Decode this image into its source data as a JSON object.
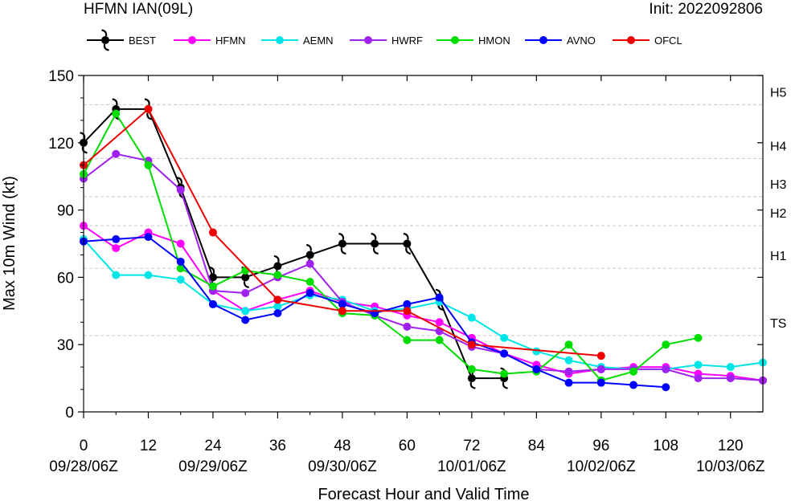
{
  "header": {
    "left_title": "HFMN IAN(09L)",
    "right_title": "Init: 2022092806"
  },
  "chart_data": {
    "type": "line",
    "xlabel": "Forecast Hour and Valid Time",
    "ylabel": "Max 10m Wind (kt)",
    "xlim": [
      0,
      126
    ],
    "ylim": [
      0,
      150
    ],
    "x_ticks": [
      0,
      12,
      24,
      36,
      48,
      60,
      72,
      84,
      96,
      108,
      120
    ],
    "y_ticks": [
      0,
      30,
      60,
      90,
      120,
      150
    ],
    "date_labels": [
      {
        "x": 0,
        "label": "09/28/06Z"
      },
      {
        "x": 24,
        "label": "09/29/06Z"
      },
      {
        "x": 48,
        "label": "09/30/06Z"
      },
      {
        "x": 72,
        "label": "10/01/06Z"
      },
      {
        "x": 96,
        "label": "10/02/06Z"
      },
      {
        "x": 120,
        "label": "10/03/06Z"
      }
    ],
    "intensity_thresholds": [
      {
        "label": "TS",
        "value": 34
      },
      {
        "label": "H1",
        "value": 64
      },
      {
        "label": "H2",
        "value": 83
      },
      {
        "label": "H3",
        "value": 96
      },
      {
        "label": "H4",
        "value": 113
      },
      {
        "label": "H5",
        "value": 137
      }
    ],
    "series": [
      {
        "name": "BEST",
        "color": "#000000",
        "marker": "hurricane",
        "x": [
          0,
          6,
          12,
          18,
          24,
          30,
          36,
          42,
          48,
          54,
          60,
          66,
          72,
          78
        ],
        "y": [
          120,
          135,
          135,
          100,
          60,
          60,
          65,
          70,
          75,
          75,
          75,
          50,
          15,
          15
        ]
      },
      {
        "name": "HFMN",
        "color": "#ff00ff",
        "marker": "dot",
        "x": [
          0,
          6,
          12,
          18,
          24,
          30,
          36,
          42,
          48,
          54,
          60,
          66,
          72,
          78,
          84,
          90,
          96,
          102,
          108,
          114,
          120,
          126
        ],
        "y": [
          83,
          73,
          80,
          75,
          54,
          45,
          50,
          54,
          49,
          47,
          43,
          40,
          33,
          26,
          21,
          17,
          19,
          20,
          20,
          17,
          16,
          14
        ]
      },
      {
        "name": "AEMN",
        "color": "#00e5e5",
        "marker": "dot",
        "x": [
          0,
          6,
          12,
          18,
          24,
          30,
          36,
          42,
          48,
          54,
          60,
          66,
          72,
          78,
          84,
          90,
          96,
          102,
          108,
          114,
          120,
          126
        ],
        "y": [
          77,
          61,
          61,
          59,
          48,
          45,
          47,
          52,
          50,
          45,
          46,
          49,
          42,
          33,
          27,
          23,
          20,
          19,
          19,
          21,
          20,
          22
        ]
      },
      {
        "name": "HWRF",
        "color": "#a020f0",
        "marker": "dot",
        "x": [
          0,
          6,
          12,
          18,
          24,
          30,
          36,
          42,
          48,
          54,
          60,
          66,
          72,
          78,
          84,
          90,
          96,
          102,
          108,
          114,
          120,
          126
        ],
        "y": [
          104,
          115,
          112,
          99,
          54,
          53,
          60,
          66,
          49,
          43,
          38,
          36,
          29,
          26,
          19,
          18,
          19,
          19,
          19,
          15,
          15,
          14
        ]
      },
      {
        "name": "HMON",
        "color": "#00dd00",
        "marker": "dot",
        "x": [
          0,
          6,
          12,
          18,
          24,
          30,
          36,
          42,
          48,
          54,
          60,
          66,
          72,
          78,
          84,
          90,
          96,
          102,
          108,
          114
        ],
        "y": [
          106,
          133,
          110,
          64,
          56,
          63,
          61,
          58,
          44,
          43,
          32,
          32,
          19,
          17,
          18,
          30,
          14,
          18,
          30,
          33
        ]
      },
      {
        "name": "AVNO",
        "color": "#0000ff",
        "marker": "dot",
        "x": [
          0,
          6,
          12,
          18,
          24,
          30,
          36,
          42,
          48,
          54,
          60,
          66,
          72,
          78,
          84,
          90,
          96,
          102,
          108
        ],
        "y": [
          76,
          77,
          78,
          67,
          48,
          41,
          44,
          53,
          48,
          44,
          48,
          51,
          31,
          26,
          19,
          13,
          13,
          12,
          11
        ]
      },
      {
        "name": "OFCL",
        "color": "#ee0000",
        "marker": "dot",
        "x": [
          0,
          12,
          24,
          36,
          48,
          60,
          72,
          96
        ],
        "y": [
          110,
          135,
          80,
          50,
          45,
          45,
          30,
          25
        ]
      }
    ]
  }
}
